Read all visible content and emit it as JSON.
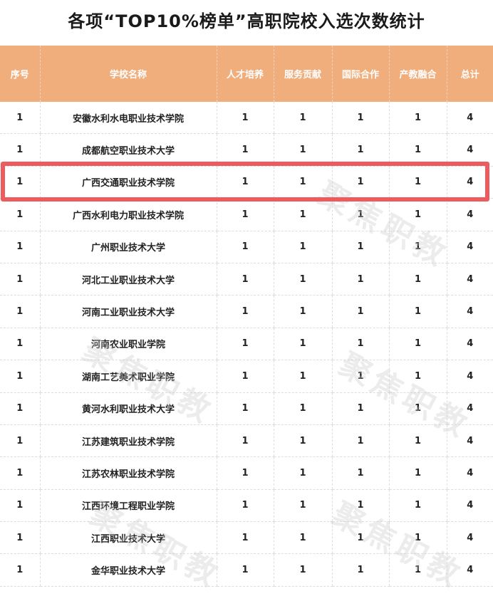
{
  "title": "各项“TOP10%榜单”高职院校入选次数统计",
  "watermark": "聚焦职教",
  "colors": {
    "header_bg": "#F0AE7C",
    "highlight_border": "#EE5B5E"
  },
  "highlighted_row": 3,
  "columns": [
    "序号",
    "学校名称",
    "人才培养",
    "服务贡献",
    "国际合作",
    "产教融合",
    "总计"
  ],
  "rows": [
    [
      "1",
      "安徽水利水电职业技术学院",
      "1",
      "1",
      "1",
      "1",
      "4"
    ],
    [
      "1",
      "成都航空职业技术大学",
      "1",
      "1",
      "1",
      "1",
      "4"
    ],
    [
      "1",
      "广西交通职业技术学院",
      "1",
      "1",
      "1",
      "1",
      "4"
    ],
    [
      "1",
      "广西水利电力职业技术学院",
      "1",
      "1",
      "1",
      "1",
      "4"
    ],
    [
      "1",
      "广州职业技术大学",
      "1",
      "1",
      "1",
      "1",
      "4"
    ],
    [
      "1",
      "河北工业职业技术大学",
      "1",
      "1",
      "1",
      "1",
      "4"
    ],
    [
      "1",
      "河南工业职业技术大学",
      "1",
      "1",
      "1",
      "1",
      "4"
    ],
    [
      "1",
      "河南农业职业学院",
      "1",
      "1",
      "1",
      "1",
      "4"
    ],
    [
      "1",
      "湖南工艺美术职业学院",
      "1",
      "1",
      "1",
      "1",
      "4"
    ],
    [
      "1",
      "黄河水利职业技术大学",
      "1",
      "1",
      "1",
      "1",
      "4"
    ],
    [
      "1",
      "江苏建筑职业技术学院",
      "1",
      "1",
      "1",
      "1",
      "4"
    ],
    [
      "1",
      "江苏农林职业技术学院",
      "1",
      "1",
      "1",
      "1",
      "4"
    ],
    [
      "1",
      "江西环境工程职业学院",
      "1",
      "1",
      "1",
      "1",
      "4"
    ],
    [
      "1",
      "江西职业技术大学",
      "1",
      "1",
      "1",
      "1",
      "4"
    ],
    [
      "1",
      "金华职业技术大学",
      "1",
      "1",
      "1",
      "1",
      "4"
    ]
  ]
}
